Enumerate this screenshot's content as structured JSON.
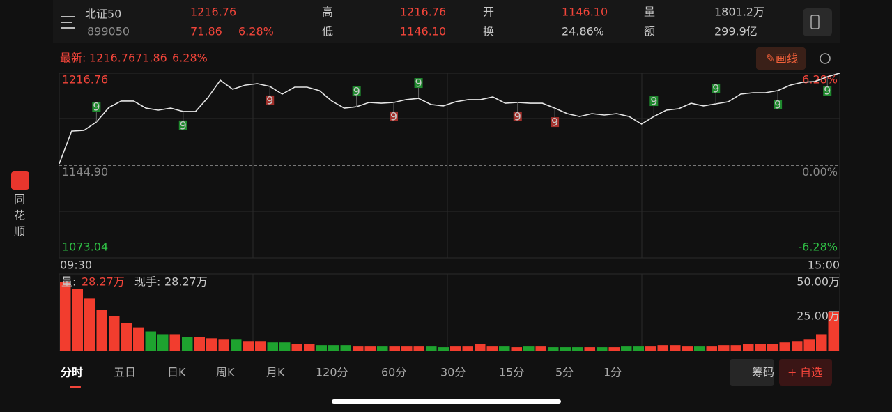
{
  "app_name": "同花顺",
  "header": {
    "name": "北证50",
    "code": "899050",
    "price": "1216.76",
    "change": "71.86",
    "change_pct": "6.28%",
    "stats": [
      {
        "label": "高",
        "value": "1216.76"
      },
      {
        "label": "低",
        "value": "1146.10"
      },
      {
        "label": "开",
        "value": "1146.10"
      },
      {
        "label": "换",
        "value": "24.86%"
      },
      {
        "label": "量",
        "value": "1801.2万"
      },
      {
        "label": "额",
        "value": "299.9亿"
      }
    ]
  },
  "latest": {
    "label": "最新:",
    "price": "1216.76",
    "change": "71.86",
    "change_pct": "6.28%"
  },
  "draw_button": "画线",
  "chart_data": [
    {
      "type": "line",
      "color": "#e6e6e6",
      "ylim": [
        1073.04,
        1216.76
      ],
      "yticks": [
        1216.76,
        {
          "value": 1144.9,
          "label": "1144.90"
        },
        1073.04
      ],
      "pct_labels": [
        "6.28%",
        "0.00%",
        "-6.28%"
      ],
      "x_labels": [
        "09:30",
        "15:00"
      ],
      "values": [
        1146.3,
        1171.7,
        1172.3,
        1178.8,
        1190.0,
        1195.1,
        1195.1,
        1189.6,
        1188.0,
        1189.6,
        1187.0,
        1187.0,
        1197.8,
        1211.3,
        1204.3,
        1207.5,
        1208.6,
        1206.5,
        1200.5,
        1205.9,
        1205.9,
        1203.2,
        1195.1,
        1189.6,
        1190.7,
        1194.0,
        1193.4,
        1194.0,
        1196.2,
        1197.2,
        1192.4,
        1191.3,
        1194.5,
        1196.2,
        1196.2,
        1198.3,
        1193.4,
        1194.0,
        1193.4,
        1193.4,
        1189.6,
        1185.3,
        1183.1,
        1185.3,
        1184.2,
        1185.3,
        1183.1,
        1177.2,
        1183.1,
        1188.0,
        1189.1,
        1193.4,
        1191.3,
        1192.9,
        1194.5,
        1200.5,
        1201.6,
        1201.6,
        1203.2,
        1207.5,
        1209.7,
        1210.3,
        1214.0,
        1216.8
      ],
      "markers": [
        {
          "index": 3,
          "label": "9",
          "place": "above",
          "color": "#1f8a2e"
        },
        {
          "index": 10,
          "label": "9",
          "place": "below",
          "color": "#1f8a2e"
        },
        {
          "index": 17,
          "label": "9",
          "place": "below",
          "color": "#a3302b"
        },
        {
          "index": 24,
          "label": "9",
          "place": "above",
          "color": "#1f8a2e"
        },
        {
          "index": 27,
          "label": "9",
          "place": "below",
          "color": "#a3302b"
        },
        {
          "index": 29,
          "label": "9",
          "place": "above",
          "color": "#1f8a2e"
        },
        {
          "index": 37,
          "label": "9",
          "place": "below",
          "color": "#a3302b"
        },
        {
          "index": 40,
          "label": "9",
          "place": "below",
          "color": "#a3302b"
        },
        {
          "index": 48,
          "label": "9",
          "place": "above",
          "color": "#1f8a2e"
        },
        {
          "index": 53,
          "label": "9",
          "place": "above",
          "color": "#1f8a2e"
        },
        {
          "index": 58,
          "label": "9",
          "place": "below",
          "color": "#1f8a2e"
        },
        {
          "index": 62,
          "label": "9",
          "place": "below",
          "color": "#1f8a2e"
        }
      ]
    },
    {
      "type": "bar",
      "up_color": "#f23d2e",
      "down_color": "#1ea32f",
      "ylim": [
        0,
        55
      ],
      "yticks": [
        {
          "value": 50,
          "label": "50.00万"
        },
        {
          "value": 25,
          "label": "25.00万"
        }
      ],
      "legend": {
        "label": "量:",
        "value": "28.27万",
        "hand_label": "现手:",
        "hand_value": "28.27万"
      },
      "values": [
        50,
        45,
        38,
        30,
        25,
        20,
        17,
        14,
        12,
        12,
        10,
        10,
        9,
        8,
        8,
        7,
        7,
        6,
        6,
        5,
        5,
        4,
        4,
        4,
        3,
        3,
        3,
        3,
        3,
        3,
        3,
        2.5,
        3,
        3,
        5,
        3,
        3,
        2.5,
        3,
        3,
        2.5,
        2.5,
        2.5,
        2.5,
        2.5,
        2.5,
        3,
        3,
        3,
        4,
        4,
        3,
        3,
        3,
        4,
        4,
        5,
        5,
        5,
        6,
        7,
        8,
        12,
        28
      ]
    }
  ],
  "tabs": [
    "分时",
    "五日",
    "日K",
    "周K",
    "月K",
    "120分",
    "60分",
    "30分",
    "15分",
    "5分",
    "1分"
  ],
  "buttons": [
    "筹码",
    "自选"
  ]
}
